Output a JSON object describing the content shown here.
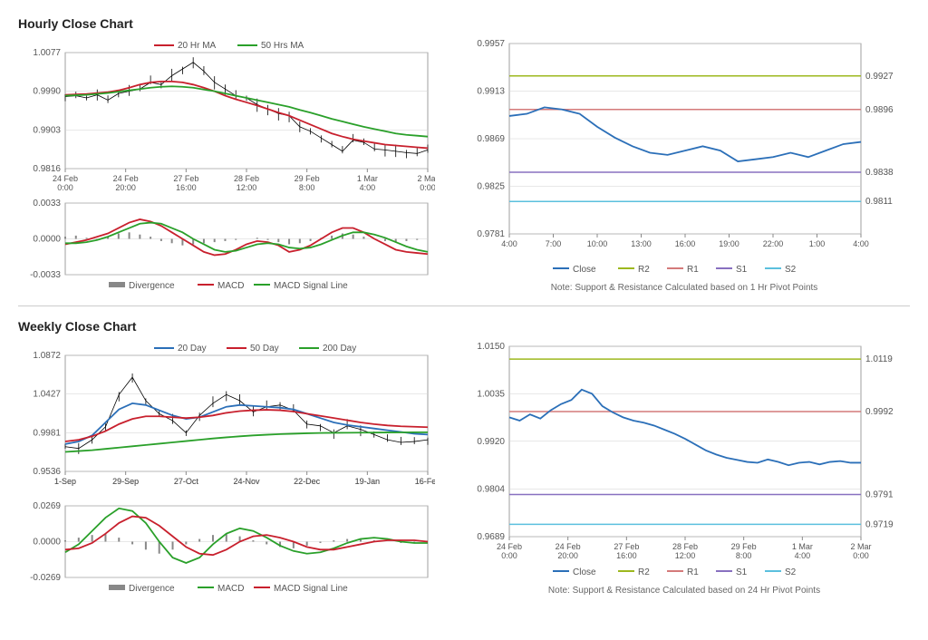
{
  "hourly": {
    "title": "Hourly Close Chart",
    "price": {
      "legend": [
        {
          "label": "20 Hr MA",
          "color": "#c8202d"
        },
        {
          "label": "50 Hrs MA",
          "color": "#2aa02a"
        }
      ],
      "ylim": [
        0.9816,
        1.0077
      ],
      "yticks": [
        0.9816,
        0.9903,
        0.999,
        1.0077
      ],
      "xlabels": [
        "24 Feb 0:00",
        "24 Feb 20:00",
        "27 Feb 16:00",
        "28 Feb 12:00",
        "29 Feb 8:00",
        "1 Mar 4:00",
        "2 Mar 0:00"
      ],
      "close": [
        0.9978,
        0.998,
        0.9975,
        0.9982,
        0.997,
        0.9985,
        0.999,
        0.9995,
        1.001,
        1.0005,
        1.0025,
        1.004,
        1.0055,
        1.0035,
        1.001,
        0.9995,
        0.998,
        0.9975,
        0.996,
        0.995,
        0.994,
        0.9935,
        0.991,
        0.99,
        0.9885,
        0.987,
        0.9855,
        0.988,
        0.9875,
        0.986,
        0.9858,
        0.9855,
        0.9852,
        0.985,
        0.9858
      ],
      "ma20": [
        0.9982,
        0.9983,
        0.9984,
        0.9986,
        0.9988,
        0.9992,
        0.9998,
        1.0005,
        1.001,
        1.0012,
        1.0012,
        1.001,
        1.0005,
        0.9998,
        0.999,
        0.998,
        0.9972,
        0.9965,
        0.9958,
        0.995,
        0.9942,
        0.9935,
        0.9925,
        0.9915,
        0.9905,
        0.9895,
        0.9888,
        0.9882,
        0.9878,
        0.9874,
        0.987,
        0.9868,
        0.9866,
        0.9864,
        0.9862
      ],
      "ma50": [
        0.998,
        0.9981,
        0.9982,
        0.9984,
        0.9986,
        0.9989,
        0.9992,
        0.9995,
        0.9998,
        1.0,
        1.0001,
        1.0,
        0.9998,
        0.9994,
        0.999,
        0.9985,
        0.998,
        0.9975,
        0.997,
        0.9965,
        0.996,
        0.9955,
        0.9948,
        0.9942,
        0.9935,
        0.9928,
        0.9922,
        0.9916,
        0.991,
        0.9905,
        0.99,
        0.9895,
        0.9892,
        0.989,
        0.9888
      ],
      "colors": {
        "close": "#000000",
        "ma20": "#c8202d",
        "ma50": "#2aa02a",
        "grid": "#d0d0d0",
        "axis": "#888"
      },
      "background": "#ffffff",
      "label_fontsize": 10
    },
    "macd": {
      "ylim": [
        -0.0033,
        0.0033
      ],
      "yticks": [
        -0.0033,
        0.0,
        0.0033
      ],
      "legend": [
        {
          "label": "Divergence",
          "color": "#888888"
        },
        {
          "label": "MACD",
          "color": "#c8202d"
        },
        {
          "label": "MACD Signal Line",
          "color": "#2aa02a"
        }
      ],
      "divergence": [
        0.0002,
        0.0003,
        0.0001,
        -0.0001,
        0.0002,
        0.0005,
        0.0006,
        0.0004,
        0.0002,
        -0.0002,
        -0.0004,
        -0.0006,
        -0.0005,
        -0.0004,
        -0.0003,
        -0.0002,
        -0.0001,
        0.0,
        0.0001,
        -0.0001,
        -0.0003,
        -0.0005,
        -0.0004,
        -0.0002,
        0.0001,
        0.0003,
        0.0005,
        0.0004,
        0.0002,
        0.0,
        -0.0002,
        -0.0003,
        -0.0002,
        -0.0001,
        0.0
      ],
      "macd": [
        -0.0005,
        -0.0003,
        -0.0001,
        0.0002,
        0.0005,
        0.001,
        0.0015,
        0.0018,
        0.0016,
        0.0012,
        0.0006,
        0.0,
        -0.0006,
        -0.0012,
        -0.0015,
        -0.0014,
        -0.001,
        -0.0005,
        -0.0002,
        -0.0003,
        -0.0006,
        -0.0012,
        -0.001,
        -0.0006,
        0.0,
        0.0006,
        0.001,
        0.001,
        0.0006,
        0.0,
        -0.0005,
        -0.001,
        -0.0012,
        -0.0013,
        -0.0014
      ],
      "signal": [
        -0.0004,
        -0.0004,
        -0.0003,
        -0.0001,
        0.0002,
        0.0006,
        0.001,
        0.0014,
        0.0015,
        0.0014,
        0.001,
        0.0006,
        0.0,
        -0.0005,
        -0.001,
        -0.0012,
        -0.0011,
        -0.0008,
        -0.0005,
        -0.0004,
        -0.0005,
        -0.0008,
        -0.0009,
        -0.0008,
        -0.0005,
        -0.0001,
        0.0003,
        0.0006,
        0.0006,
        0.0004,
        0.0001,
        -0.0003,
        -0.0007,
        -0.001,
        -0.0012
      ],
      "colors": {
        "divergence": "#888888",
        "macd": "#c8202d",
        "signal": "#2aa02a"
      }
    },
    "sr": {
      "ylim": [
        0.9781,
        0.9957
      ],
      "yticks": [
        0.9781,
        0.9825,
        0.9869,
        0.9913,
        0.9957
      ],
      "xlabels": [
        "4:00",
        "7:00",
        "10:00",
        "13:00",
        "16:00",
        "19:00",
        "22:00",
        "1:00",
        "4:00"
      ],
      "levels": [
        {
          "name": "R2",
          "value": 0.9927,
          "color": "#9db81e"
        },
        {
          "name": "R1",
          "value": 0.9896,
          "color": "#d47a7a"
        },
        {
          "name": "S1",
          "value": 0.9838,
          "color": "#8870c0"
        },
        {
          "name": "S2",
          "value": 0.9811,
          "color": "#5bc0de"
        }
      ],
      "close": [
        0.989,
        0.9892,
        0.9898,
        0.9896,
        0.9892,
        0.988,
        0.987,
        0.9862,
        0.9856,
        0.9854,
        0.9858,
        0.9862,
        0.9858,
        0.9848,
        0.985,
        0.9852,
        0.9856,
        0.9852,
        0.9858,
        0.9864,
        0.9866
      ],
      "close_color": "#2b6fb8",
      "grid": "#d0d0d0",
      "legend": [
        {
          "label": "Close",
          "color": "#2b6fb8"
        },
        {
          "label": "R2",
          "color": "#9db81e"
        },
        {
          "label": "R1",
          "color": "#d47a7a"
        },
        {
          "label": "S1",
          "color": "#8870c0"
        },
        {
          "label": "S2",
          "color": "#5bc0de"
        }
      ],
      "note": "Note: Support & Resistance Calculated based on 1 Hr Pivot Points"
    }
  },
  "weekly": {
    "title": "Weekly Close Chart",
    "price": {
      "legend": [
        {
          "label": "20 Day",
          "color": "#2b6fb8"
        },
        {
          "label": "50 Day",
          "color": "#c8202d"
        },
        {
          "label": "200 Day",
          "color": "#2aa02a"
        }
      ],
      "ylim": [
        0.9536,
        1.0872
      ],
      "yticks": [
        0.9536,
        0.9981,
        1.0427,
        1.0872
      ],
      "xlabels": [
        "1-Sep",
        "29-Sep",
        "27-Oct",
        "24-Nov",
        "22-Dec",
        "19-Jan",
        "16-Feb"
      ],
      "close": [
        0.982,
        0.98,
        0.99,
        1.005,
        1.042,
        1.062,
        1.035,
        1.02,
        1.012,
        0.998,
        1.018,
        1.032,
        1.042,
        1.035,
        1.022,
        1.028,
        1.03,
        1.024,
        1.008,
        1.006,
        0.998,
        1.006,
        1.002,
        0.996,
        0.99,
        0.987,
        0.988,
        0.99
      ],
      "ma20": [
        0.985,
        0.988,
        0.995,
        1.01,
        1.025,
        1.032,
        1.03,
        1.024,
        1.018,
        1.014,
        1.016,
        1.022,
        1.028,
        1.03,
        1.029,
        1.028,
        1.027,
        1.025,
        1.02,
        1.015,
        1.01,
        1.007,
        1.005,
        1.003,
        1.001,
        0.999,
        0.997,
        0.996
      ],
      "ma50": [
        0.988,
        0.99,
        0.994,
        1.0,
        1.008,
        1.014,
        1.017,
        1.017,
        1.016,
        1.015,
        1.016,
        1.018,
        1.021,
        1.023,
        1.024,
        1.0245,
        1.024,
        1.0225,
        1.02,
        1.0175,
        1.015,
        1.0125,
        1.01,
        1.008,
        1.0065,
        1.0055,
        1.005,
        1.0045
      ],
      "ma200": [
        0.976,
        0.977,
        0.978,
        0.9795,
        0.981,
        0.9825,
        0.984,
        0.9855,
        0.987,
        0.9885,
        0.99,
        0.9915,
        0.9928,
        0.994,
        0.995,
        0.9958,
        0.9965,
        0.997,
        0.9975,
        0.9978,
        0.998,
        0.9981,
        0.9982,
        0.9983,
        0.9984,
        0.9985,
        0.9986,
        0.9986
      ],
      "colors": {
        "close": "#000000",
        "ma20": "#2b6fb8",
        "ma50": "#c8202d",
        "ma200": "#2aa02a",
        "grid": "#d0d0d0"
      }
    },
    "macd": {
      "ylim": [
        -0.0269,
        0.0269
      ],
      "yticks": [
        -0.0269,
        0.0,
        0.0269
      ],
      "legend": [
        {
          "label": "Divergence",
          "color": "#888888"
        },
        {
          "label": "MACD",
          "color": "#2aa02a"
        },
        {
          "label": "MACD Signal Line",
          "color": "#c8202d"
        }
      ],
      "divergence": [
        0.001,
        0.003,
        0.005,
        0.006,
        0.003,
        -0.002,
        -0.006,
        -0.009,
        -0.006,
        -0.002,
        0.002,
        0.005,
        0.006,
        0.004,
        0.001,
        -0.002,
        -0.004,
        -0.005,
        -0.003,
        -0.001,
        0.001,
        0.002,
        0.002,
        0.001,
        0.0,
        -0.001,
        -0.001,
        0.0
      ],
      "macd": [
        -0.008,
        -0.002,
        0.008,
        0.018,
        0.025,
        0.023,
        0.014,
        0.0,
        -0.012,
        -0.016,
        -0.012,
        -0.002,
        0.006,
        0.01,
        0.008,
        0.003,
        -0.003,
        -0.007,
        -0.009,
        -0.008,
        -0.005,
        -0.001,
        0.002,
        0.003,
        0.002,
        0.0,
        -0.001,
        -0.001
      ],
      "signal": [
        -0.006,
        -0.005,
        -0.001,
        0.006,
        0.014,
        0.019,
        0.018,
        0.012,
        0.004,
        -0.004,
        -0.009,
        -0.01,
        -0.006,
        0.0,
        0.004,
        0.005,
        0.003,
        0.0,
        -0.004,
        -0.006,
        -0.006,
        -0.004,
        -0.002,
        0.0,
        0.001,
        0.001,
        0.001,
        0.0
      ],
      "colors": {
        "divergence": "#888888",
        "macd": "#2aa02a",
        "signal": "#c8202d"
      }
    },
    "sr": {
      "ylim": [
        0.9689,
        1.015
      ],
      "yticks": [
        0.9689,
        0.9804,
        0.992,
        1.0035,
        1.015
      ],
      "xlabels": [
        "24 Feb 0:00",
        "24 Feb 20:00",
        "27 Feb 16:00",
        "28 Feb 12:00",
        "29 Feb 8:00",
        "1 Mar 4:00",
        "2 Mar 0:00"
      ],
      "levels": [
        {
          "name": "R2",
          "value": 1.0119,
          "color": "#9db81e"
        },
        {
          "name": "R1",
          "value": 0.9992,
          "color": "#d47a7a"
        },
        {
          "name": "S1",
          "value": 0.9791,
          "color": "#8870c0"
        },
        {
          "name": "S2",
          "value": 0.9719,
          "color": "#5bc0de"
        }
      ],
      "close": [
        0.9978,
        0.997,
        0.9985,
        0.9975,
        0.9995,
        1.001,
        1.002,
        1.0045,
        1.0035,
        1.0005,
        0.999,
        0.9978,
        0.997,
        0.9965,
        0.9958,
        0.9948,
        0.9938,
        0.9926,
        0.9912,
        0.9898,
        0.9888,
        0.988,
        0.9875,
        0.987,
        0.9868,
        0.9876,
        0.987,
        0.9862,
        0.9868,
        0.987,
        0.9864,
        0.987,
        0.9872,
        0.9868,
        0.9868
      ],
      "close_color": "#2b6fb8",
      "grid": "#d0d0d0",
      "legend": [
        {
          "label": "Close",
          "color": "#2b6fb8"
        },
        {
          "label": "R2",
          "color": "#9db81e"
        },
        {
          "label": "R1",
          "color": "#d47a7a"
        },
        {
          "label": "S1",
          "color": "#8870c0"
        },
        {
          "label": "S2",
          "color": "#5bc0de"
        }
      ],
      "note": "Note: Support & Resistance Calculated based on 24 Hr Pivot Points"
    }
  }
}
